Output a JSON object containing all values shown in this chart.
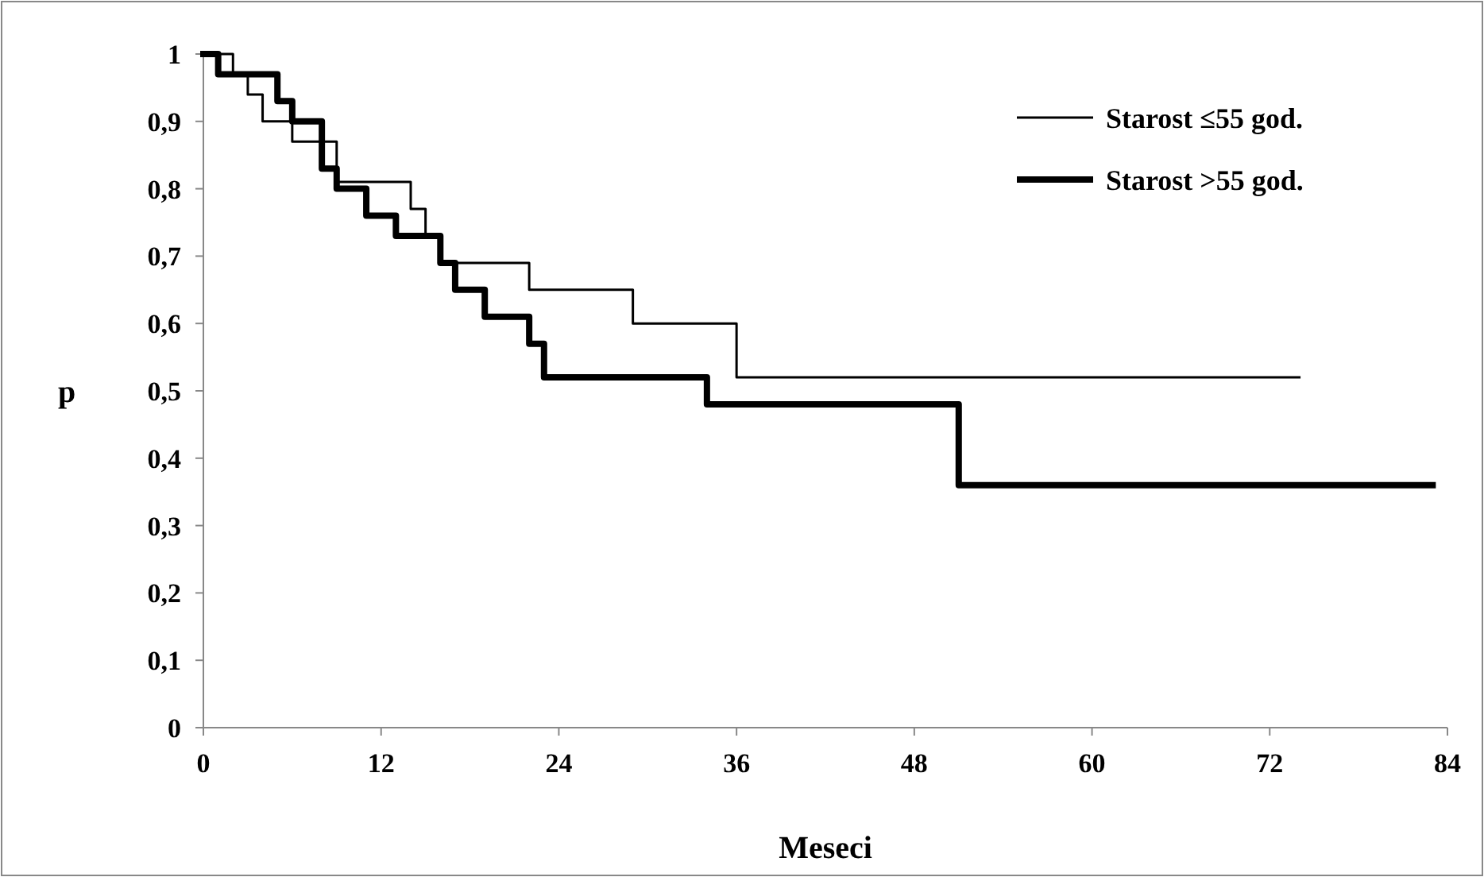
{
  "chart_data": {
    "type": "step",
    "xlabel": "Meseci",
    "ylabel": "p",
    "series": [
      {
        "name": "Starost ≤55 god.",
        "color": "#000000",
        "x": [
          0,
          2,
          3,
          4,
          6,
          9,
          14,
          15,
          16,
          22,
          29,
          36,
          74
        ],
        "values": [
          1,
          0.97,
          0.94,
          0.9,
          0.87,
          0.81,
          0.77,
          0.73,
          0.69,
          0.65,
          0.6,
          0.52,
          0.52
        ]
      },
      {
        "name": "Starost >55 god.",
        "color": "#000000",
        "x": [
          0,
          1,
          5,
          6,
          8,
          9,
          11,
          13,
          16,
          17,
          19,
          22,
          23,
          34,
          51,
          83
        ],
        "values": [
          1,
          0.97,
          0.93,
          0.9,
          0.83,
          0.8,
          0.76,
          0.73,
          0.69,
          0.65,
          0.61,
          0.57,
          0.52,
          0.48,
          0.36,
          0.36
        ]
      }
    ],
    "xlim": [
      0,
      84
    ],
    "xticks": [
      0,
      12,
      24,
      36,
      48,
      60,
      72,
      84
    ],
    "ylim": [
      0,
      1
    ],
    "yticks": [
      0,
      {
        "value": 0.1,
        "label": "0,1"
      },
      {
        "value": 0.2,
        "label": "0,2"
      },
      {
        "value": 0.3,
        "label": "0,3"
      },
      {
        "value": 0.4,
        "label": "0,4"
      },
      {
        "value": 0.5,
        "label": "0,5"
      },
      {
        "value": 0.6,
        "label": "0,6"
      },
      {
        "value": 0.7,
        "label": "0,7"
      },
      {
        "value": 0.8,
        "label": "0,8"
      },
      {
        "value": 0.9,
        "label": "0,9"
      },
      1
    ],
    "grid": false,
    "legend": "top right",
    "line_style": "solid",
    "marker": "none"
  }
}
